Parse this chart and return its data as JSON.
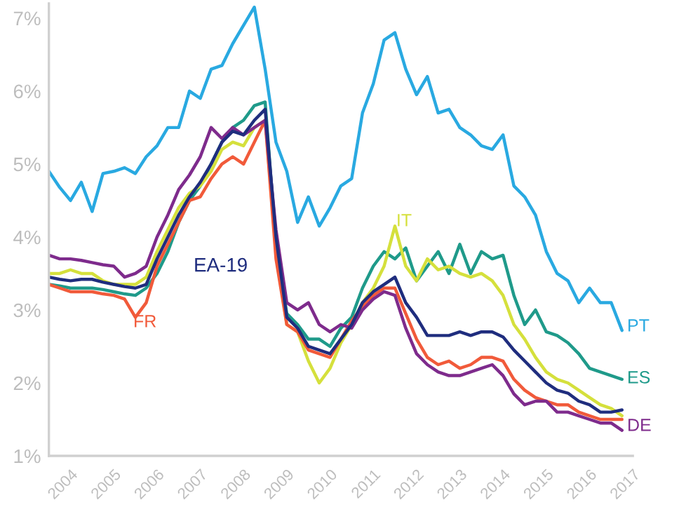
{
  "chart_data": {
    "type": "line",
    "x": [
      2003.5,
      2003.75,
      2004.0,
      2004.25,
      2004.5,
      2004.75,
      2005.0,
      2005.25,
      2005.5,
      2005.75,
      2006.0,
      2006.25,
      2006.5,
      2006.75,
      2007.0,
      2007.25,
      2007.5,
      2007.75,
      2008.0,
      2008.25,
      2008.5,
      2008.75,
      2009.0,
      2009.25,
      2009.5,
      2009.75,
      2010.0,
      2010.25,
      2010.5,
      2010.75,
      2011.0,
      2011.25,
      2011.5,
      2011.75,
      2012.0,
      2012.25,
      2012.5,
      2012.75,
      2013.0,
      2013.25,
      2013.5,
      2013.75,
      2014.0,
      2014.25,
      2014.5,
      2014.75,
      2015.0,
      2015.25,
      2015.5,
      2015.75,
      2016.0,
      2016.25,
      2016.5,
      2016.75
    ],
    "series": [
      {
        "name": "PT",
        "color": "#29a9e1",
        "values": [
          4.9,
          4.68,
          4.5,
          4.75,
          4.35,
          4.87,
          4.9,
          4.95,
          4.87,
          5.1,
          5.25,
          5.5,
          5.5,
          6.0,
          5.9,
          6.3,
          6.35,
          6.65,
          6.9,
          7.15,
          6.3,
          5.3,
          4.9,
          4.2,
          4.55,
          4.15,
          4.4,
          4.7,
          4.8,
          5.7,
          6.1,
          6.7,
          6.8,
          6.3,
          5.95,
          6.2,
          5.7,
          5.75,
          5.5,
          5.4,
          5.25,
          5.2,
          5.4,
          4.7,
          4.55,
          4.3,
          3.8,
          3.5,
          3.4,
          3.1,
          3.3,
          3.1,
          3.1,
          2.72
        ]
      },
      {
        "name": "ES",
        "color": "#1f9a8a",
        "values": [
          3.35,
          3.33,
          3.3,
          3.3,
          3.3,
          3.28,
          3.25,
          3.22,
          3.2,
          3.3,
          3.5,
          3.8,
          4.2,
          4.5,
          4.7,
          5.0,
          5.3,
          5.5,
          5.6,
          5.8,
          5.85,
          3.9,
          2.95,
          2.8,
          2.6,
          2.6,
          2.5,
          2.75,
          2.9,
          3.3,
          3.6,
          3.8,
          3.7,
          3.85,
          3.4,
          3.6,
          3.8,
          3.5,
          3.9,
          3.5,
          3.8,
          3.7,
          3.75,
          3.2,
          2.8,
          3.0,
          2.7,
          2.65,
          2.55,
          2.4,
          2.2,
          2.15,
          2.1,
          2.05
        ]
      },
      {
        "name": "IT",
        "color": "#d5e03c",
        "values": [
          3.5,
          3.5,
          3.55,
          3.5,
          3.5,
          3.4,
          3.35,
          3.35,
          3.35,
          3.45,
          3.8,
          4.1,
          4.4,
          4.6,
          4.7,
          4.9,
          5.2,
          5.3,
          5.25,
          5.5,
          5.6,
          3.8,
          2.8,
          2.7,
          2.3,
          2.0,
          2.2,
          2.55,
          2.8,
          3.1,
          3.3,
          3.6,
          4.15,
          3.6,
          3.4,
          3.7,
          3.55,
          3.6,
          3.5,
          3.45,
          3.5,
          3.4,
          3.2,
          2.8,
          2.6,
          2.35,
          2.15,
          2.05,
          2.0,
          1.9,
          1.8,
          1.7,
          1.65,
          1.55
        ]
      },
      {
        "name": "FR",
        "color": "#f15a3a",
        "values": [
          3.35,
          3.3,
          3.25,
          3.25,
          3.25,
          3.22,
          3.2,
          3.15,
          2.9,
          3.1,
          3.6,
          3.9,
          4.2,
          4.5,
          4.55,
          4.8,
          5.0,
          5.1,
          5.0,
          5.3,
          5.6,
          3.7,
          2.8,
          2.7,
          2.45,
          2.4,
          2.35,
          2.6,
          2.85,
          3.05,
          3.2,
          3.3,
          3.3,
          2.95,
          2.6,
          2.35,
          2.25,
          2.3,
          2.2,
          2.25,
          2.35,
          2.35,
          2.3,
          2.05,
          1.9,
          1.8,
          1.75,
          1.7,
          1.7,
          1.6,
          1.55,
          1.5,
          1.5,
          1.5
        ]
      },
      {
        "name": "DE",
        "color": "#7e2b8c",
        "values": [
          3.75,
          3.7,
          3.7,
          3.68,
          3.65,
          3.62,
          3.6,
          3.45,
          3.5,
          3.6,
          4.0,
          4.3,
          4.65,
          4.85,
          5.1,
          5.5,
          5.35,
          5.5,
          5.4,
          5.5,
          5.6,
          4.1,
          3.1,
          3.0,
          3.1,
          2.8,
          2.7,
          2.8,
          2.75,
          3.0,
          3.15,
          3.25,
          3.2,
          2.75,
          2.4,
          2.25,
          2.15,
          2.1,
          2.1,
          2.15,
          2.2,
          2.25,
          2.1,
          1.85,
          1.7,
          1.75,
          1.75,
          1.6,
          1.6,
          1.55,
          1.5,
          1.45,
          1.45,
          1.35
        ]
      },
      {
        "name": "EA-19",
        "color": "#1f2d7e",
        "values": [
          3.45,
          3.42,
          3.4,
          3.42,
          3.42,
          3.38,
          3.35,
          3.32,
          3.3,
          3.35,
          3.7,
          4.0,
          4.3,
          4.55,
          4.75,
          5.0,
          5.3,
          5.45,
          5.4,
          5.6,
          5.75,
          4.0,
          2.9,
          2.75,
          2.5,
          2.45,
          2.4,
          2.6,
          2.8,
          3.1,
          3.25,
          3.35,
          3.45,
          3.1,
          2.9,
          2.65,
          2.65,
          2.65,
          2.7,
          2.65,
          2.7,
          2.7,
          2.63,
          2.45,
          2.3,
          2.15,
          2.0,
          1.9,
          1.86,
          1.75,
          1.7,
          1.6,
          1.6,
          1.63
        ]
      }
    ],
    "xlim": [
      2003.5,
      2017.0
    ],
    "xticks": [
      2004,
      2005,
      2006,
      2007,
      2008,
      2009,
      2010,
      2011,
      2012,
      2013,
      2014,
      2015,
      2016,
      2017
    ],
    "ylim": [
      1,
      7.2
    ],
    "yticks": [
      {
        "value": 1,
        "label": "1%"
      },
      {
        "value": 2,
        "label": "2%"
      },
      {
        "value": 3,
        "label": "3%"
      },
      {
        "value": 4,
        "label": "4%"
      },
      {
        "value": 5,
        "label": "5%"
      },
      {
        "value": 6,
        "label": "6%"
      },
      {
        "value": 7,
        "label": "7%"
      }
    ],
    "grid": false,
    "legend": false,
    "marker": "none",
    "line_style": "solid"
  }
}
